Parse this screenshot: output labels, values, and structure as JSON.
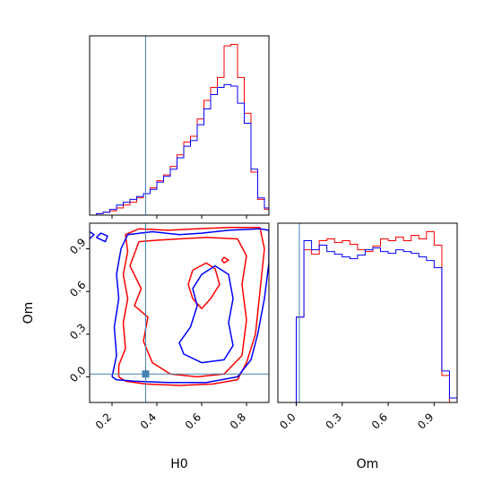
{
  "chart_data": {
    "type": "corner",
    "parameters": [
      "H0",
      "Om"
    ],
    "truth": {
      "H0": 0.35,
      "Om": 0.02
    },
    "colors": {
      "series_a": "#ff0000",
      "series_b": "#0000ff",
      "truth": "#4682b4"
    },
    "panels": [
      {
        "id": "hist-h0",
        "type": "histogram",
        "xlim": [
          0.1,
          0.9
        ],
        "bin_edges": [
          0.1,
          0.13,
          0.16,
          0.19,
          0.22,
          0.25,
          0.28,
          0.31,
          0.34,
          0.37,
          0.4,
          0.43,
          0.46,
          0.49,
          0.52,
          0.55,
          0.58,
          0.61,
          0.64,
          0.67,
          0.7,
          0.73,
          0.76,
          0.79,
          0.82,
          0.85,
          0.88,
          0.9
        ],
        "series": [
          {
            "color": "#ff0000",
            "values": [
              0,
              1,
              2,
              3,
              5,
              7,
              9,
              12,
              15,
              19,
              24,
              28,
              34,
              42,
              51,
              55,
              67,
              80,
              89,
              96,
              118,
              119,
              96,
              71,
              30,
              11,
              4
            ]
          },
          {
            "color": "#0000ff",
            "values": [
              0,
              1,
              2,
              4,
              7,
              9,
              11,
              13,
              15,
              18,
              23,
              27,
              32,
              40,
              48,
              52,
              63,
              74,
              84,
              89,
              91,
              90,
              78,
              64,
              32,
              12,
              5
            ]
          }
        ]
      },
      {
        "id": "contour-h0-om",
        "type": "contour",
        "xlim": [
          0.1,
          0.9
        ],
        "ylim": [
          -0.18,
          1.08
        ],
        "xticks": [
          "0.2",
          "0.4",
          "0.6",
          "0.8"
        ],
        "xtick_values": [
          0.2,
          0.4,
          0.6,
          0.8
        ],
        "yticks": [
          "0.0",
          "0.3",
          "0.6",
          "0.9"
        ],
        "ytick_values": [
          0.0,
          0.3,
          0.6,
          0.9
        ],
        "xlabel": "H0",
        "ylabel": "Om",
        "series": [
          {
            "color": "#ff0000",
            "contours": [
              [
                [
                  0.23,
                  0.0
                ],
                [
                  0.23,
                  0.08
                ],
                [
                  0.26,
                  0.2
                ],
                [
                  0.25,
                  0.38
                ],
                [
                  0.27,
                  0.55
                ],
                [
                  0.25,
                  0.72
                ],
                [
                  0.27,
                  0.88
                ],
                [
                  0.26,
                  1.0
                ],
                [
                  0.32,
                  1.04
                ],
                [
                  0.45,
                  1.03
                ],
                [
                  0.58,
                  1.04
                ],
                [
                  0.72,
                  1.05
                ],
                [
                  0.86,
                  1.05
                ],
                [
                  0.88,
                  0.9
                ],
                [
                  0.86,
                  0.6
                ],
                [
                  0.84,
                  0.3
                ],
                [
                  0.8,
                  0.1
                ],
                [
                  0.76,
                  -0.02
                ],
                [
                  0.65,
                  -0.05
                ],
                [
                  0.5,
                  -0.06
                ],
                [
                  0.35,
                  -0.05
                ],
                [
                  0.26,
                  -0.03
                ],
                [
                  0.23,
                  0.0
                ]
              ],
              [
                [
                  0.32,
                  0.95
                ],
                [
                  0.28,
                  0.78
                ],
                [
                  0.33,
                  0.62
                ],
                [
                  0.3,
                  0.5
                ],
                [
                  0.36,
                  0.42
                ],
                [
                  0.34,
                  0.25
                ],
                [
                  0.38,
                  0.1
                ],
                [
                  0.46,
                  0.02
                ],
                [
                  0.58,
                  0.0
                ],
                [
                  0.7,
                  0.02
                ],
                [
                  0.78,
                  0.15
                ],
                [
                  0.8,
                  0.4
                ],
                [
                  0.78,
                  0.65
                ],
                [
                  0.8,
                  0.85
                ],
                [
                  0.76,
                  0.97
                ],
                [
                  0.62,
                  0.98
                ],
                [
                  0.5,
                  0.97
                ],
                [
                  0.4,
                  0.96
                ],
                [
                  0.32,
                  0.95
                ]
              ],
              [
                [
                  0.56,
                  0.75
                ],
                [
                  0.62,
                  0.8
                ],
                [
                  0.66,
                  0.76
                ],
                [
                  0.68,
                  0.65
                ],
                [
                  0.64,
                  0.55
                ],
                [
                  0.6,
                  0.48
                ],
                [
                  0.56,
                  0.55
                ],
                [
                  0.54,
                  0.65
                ],
                [
                  0.56,
                  0.75
                ]
              ],
              [
                [
                  0.7,
                  0.8
                ],
                [
                  0.72,
                  0.82
                ],
                [
                  0.7,
                  0.84
                ],
                [
                  0.69,
                  0.82
                ],
                [
                  0.7,
                  0.8
                ]
              ]
            ]
          },
          {
            "color": "#0000ff",
            "contours": [
              [
                [
                  0.2,
                  0.0
                ],
                [
                  0.22,
                  0.15
                ],
                [
                  0.21,
                  0.35
                ],
                [
                  0.23,
                  0.55
                ],
                [
                  0.22,
                  0.72
                ],
                [
                  0.24,
                  0.9
                ],
                [
                  0.27,
                  1.0
                ],
                [
                  0.38,
                  1.02
                ],
                [
                  0.5,
                  1.0
                ],
                [
                  0.6,
                  1.01
                ],
                [
                  0.72,
                  1.03
                ],
                [
                  0.86,
                  1.04
                ],
                [
                  0.9,
                  1.03
                ],
                [
                  0.9,
                  0.8
                ],
                [
                  0.88,
                  0.55
                ],
                [
                  0.85,
                  0.3
                ],
                [
                  0.82,
                  0.12
                ],
                [
                  0.76,
                  0.0
                ],
                [
                  0.62,
                  -0.04
                ],
                [
                  0.45,
                  -0.04
                ],
                [
                  0.3,
                  -0.03
                ],
                [
                  0.22,
                  -0.02
                ],
                [
                  0.2,
                  0.0
                ]
              ],
              [
                [
                  0.6,
                  0.1
                ],
                [
                  0.52,
                  0.16
                ],
                [
                  0.5,
                  0.24
                ],
                [
                  0.55,
                  0.35
                ],
                [
                  0.58,
                  0.5
                ],
                [
                  0.56,
                  0.62
                ],
                [
                  0.6,
                  0.72
                ],
                [
                  0.66,
                  0.78
                ],
                [
                  0.72,
                  0.72
                ],
                [
                  0.74,
                  0.55
                ],
                [
                  0.72,
                  0.38
                ],
                [
                  0.74,
                  0.22
                ],
                [
                  0.7,
                  0.12
                ],
                [
                  0.6,
                  0.1
                ]
              ],
              [
                [
                  0.13,
                  0.98
                ],
                [
                  0.17,
                  0.95
                ],
                [
                  0.18,
                  0.99
                ],
                [
                  0.15,
                  1.01
                ],
                [
                  0.13,
                  0.98
                ]
              ],
              [
                [
                  0.1,
                  0.97
                ],
                [
                  0.12,
                  1.0
                ],
                [
                  0.1,
                  1.02
                ]
              ]
            ]
          }
        ]
      },
      {
        "id": "hist-om",
        "type": "histogram",
        "xlim": [
          -0.12,
          1.05
        ],
        "xticks": [
          "0.0",
          "0.3",
          "0.6",
          "0.9"
        ],
        "xtick_values": [
          0.0,
          0.3,
          0.6,
          0.9
        ],
        "xlabel": "Om",
        "bin_edges": [
          -0.1,
          -0.05,
          0.0,
          0.05,
          0.1,
          0.15,
          0.2,
          0.25,
          0.3,
          0.35,
          0.4,
          0.45,
          0.5,
          0.55,
          0.6,
          0.65,
          0.7,
          0.75,
          0.8,
          0.85,
          0.9,
          0.95,
          1.0,
          1.05
        ],
        "series": [
          {
            "color": "#ff0000",
            "values": [
              0,
              0,
              95,
              170,
              165,
              180,
              182,
              178,
              180,
              176,
              170,
              168,
              174,
              182,
              180,
              184,
              180,
              186,
              182,
              190,
              175,
              30,
              0
            ]
          },
          {
            "color": "#0000ff",
            "values": [
              0,
              0,
              95,
              180,
              170,
              175,
              168,
              165,
              162,
              160,
              164,
              170,
              172,
              168,
              166,
              170,
              168,
              166,
              162,
              158,
              150,
              35,
              5
            ]
          }
        ]
      }
    ]
  }
}
